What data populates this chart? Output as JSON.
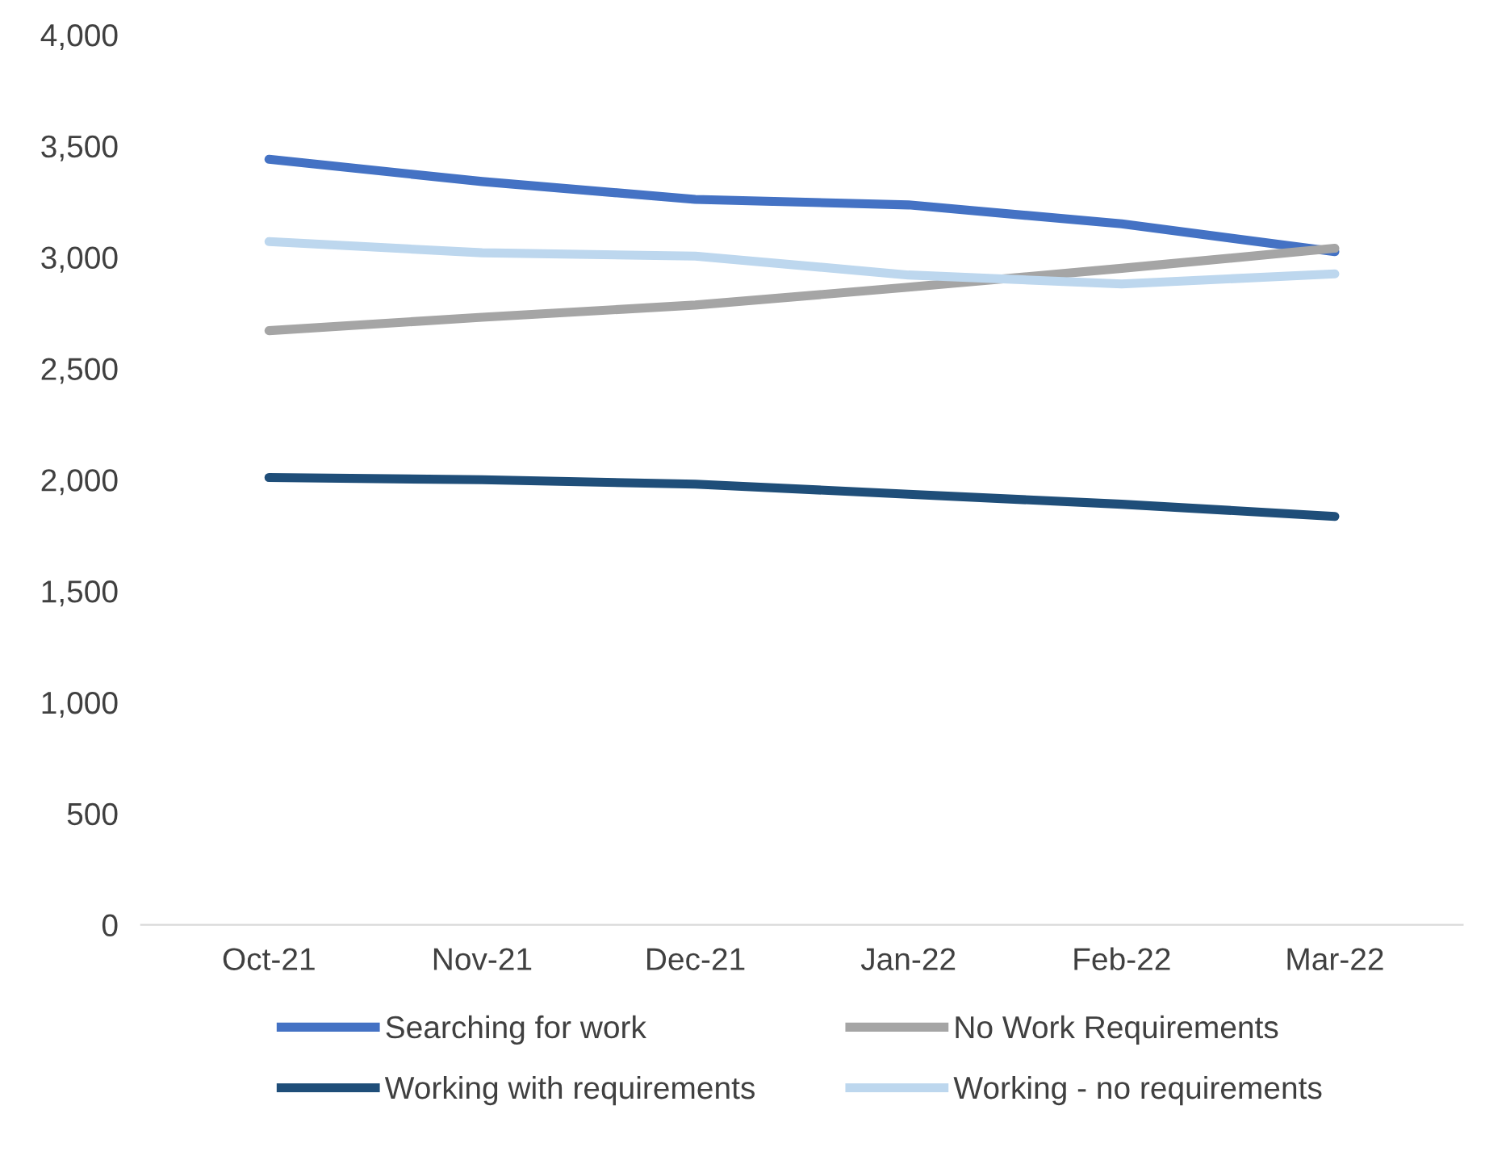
{
  "chart_data": {
    "type": "line",
    "categories": [
      "Oct-21",
      "Nov-21",
      "Dec-21",
      "Jan-22",
      "Feb-22",
      "Mar-22"
    ],
    "series": [
      {
        "name": "Searching for work",
        "color": "#4472c4",
        "values": [
          3440,
          3340,
          3260,
          3235,
          3150,
          3025
        ]
      },
      {
        "name": "Working with requirements",
        "color": "#1f4e79",
        "values": [
          2010,
          2000,
          1980,
          1935,
          1890,
          1835
        ]
      },
      {
        "name": "No Work Requirements",
        "color": "#a5a5a5",
        "values": [
          2670,
          2730,
          2785,
          2865,
          2950,
          3040
        ]
      },
      {
        "name": "Working - no requirements",
        "color": "#bdd7ee",
        "values": [
          3070,
          3020,
          3005,
          2920,
          2880,
          2925
        ]
      }
    ],
    "ylim": [
      0,
      4000
    ],
    "yticks": [
      {
        "value": 0,
        "label": "0"
      },
      {
        "value": 500,
        "label": "500"
      },
      {
        "value": 1000,
        "label": "1,000"
      },
      {
        "value": 1500,
        "label": "1,500"
      },
      {
        "value": 2000,
        "label": "2,000"
      },
      {
        "value": 2500,
        "label": "2,500"
      },
      {
        "value": 3000,
        "label": "3,000"
      },
      {
        "value": 3500,
        "label": "3,500"
      },
      {
        "value": 4000,
        "label": "4,000"
      }
    ],
    "grid": false,
    "legend": "bottom",
    "marker": "none",
    "line_style": "solid"
  }
}
